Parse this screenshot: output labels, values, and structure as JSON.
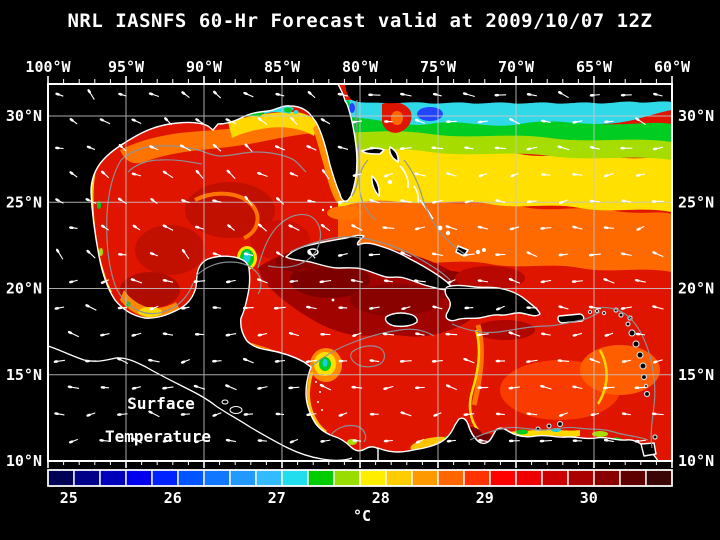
{
  "title": "NRL IASNFS  60-Hr Forecast valid at 2009/10/07 12Z",
  "axes": {
    "longitude_labels": [
      "100°W",
      "95°W",
      "90°W",
      "85°W",
      "80°W",
      "75°W",
      "70°W",
      "65°W",
      "60°W"
    ],
    "latitude_labels": [
      "30°N",
      "25°N",
      "20°N",
      "15°N",
      "10°N"
    ]
  },
  "overlay": {
    "line1": "Surface",
    "line2": "Temperature"
  },
  "colorbar": {
    "unit": "°C",
    "tick_labels": [
      "25",
      "26",
      "27",
      "28",
      "29",
      "30"
    ],
    "tick_values": [
      25,
      26,
      27,
      28,
      29,
      30
    ],
    "value_range_c": [
      24.8,
      30.8
    ],
    "cell_step_c": 0.25,
    "cell_colors": [
      "#000055",
      "#000088",
      "#0000bb",
      "#0000ee",
      "#0022ff",
      "#0055ff",
      "#1177ff",
      "#2299ff",
      "#33bbff",
      "#22ddee",
      "#00cc00",
      "#99dd00",
      "#ffee00",
      "#ffcc00",
      "#ff9900",
      "#ff6600",
      "#ff3300",
      "#ff0000",
      "#ee0000",
      "#cc0000",
      "#aa0000",
      "#880000",
      "#5e0000",
      "#3a0505"
    ]
  },
  "palette": {
    "background": "#000000",
    "land": "#000000",
    "sea_base": "#e01500",
    "coastline": "#ffffff",
    "contour": "#8e949a",
    "grid": "#c8c8c8",
    "frame": "#ffffff",
    "text": "#ffffff",
    "vector": "#ffffff"
  }
}
